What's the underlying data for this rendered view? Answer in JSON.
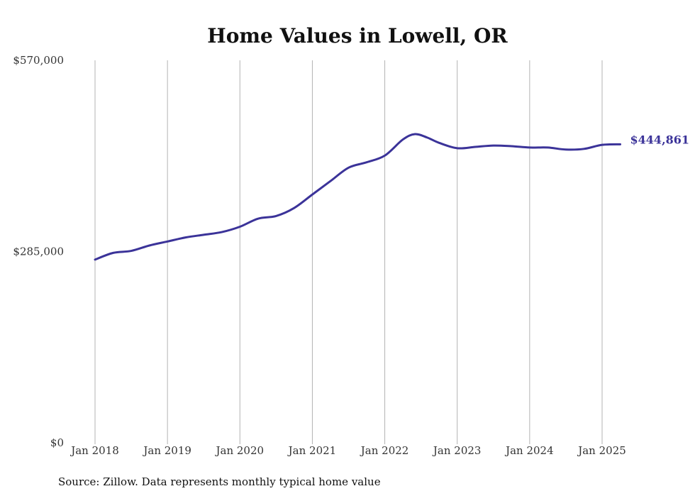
{
  "chart_data": {
    "type": "line",
    "title": "Home Values in Lowell, OR",
    "xlabel": "",
    "ylabel": "",
    "ylim": [
      0,
      570000
    ],
    "y_ticks": [
      {
        "value": 0,
        "label": "$0"
      },
      {
        "value": 285000,
        "label": "$285,000"
      },
      {
        "value": 570000,
        "label": "$570,000"
      }
    ],
    "x_range": [
      "2018-01",
      "2025-04"
    ],
    "x_ticks": [
      {
        "date": "2018-01",
        "label": "Jan 2018"
      },
      {
        "date": "2019-01",
        "label": "Jan 2019"
      },
      {
        "date": "2020-01",
        "label": "Jan 2020"
      },
      {
        "date": "2021-01",
        "label": "Jan 2021"
      },
      {
        "date": "2022-01",
        "label": "Jan 2022"
      },
      {
        "date": "2023-01",
        "label": "Jan 2023"
      },
      {
        "date": "2024-01",
        "label": "Jan 2024"
      },
      {
        "date": "2025-01",
        "label": "Jan 2025"
      }
    ],
    "grid": {
      "vertical": true,
      "horizontal": false
    },
    "series": [
      {
        "color": "#3b3399",
        "points": [
          {
            "x": "2018-01",
            "y": 273000
          },
          {
            "x": "2018-04",
            "y": 283000
          },
          {
            "x": "2018-07",
            "y": 286000
          },
          {
            "x": "2018-10",
            "y": 294000
          },
          {
            "x": "2019-01",
            "y": 300000
          },
          {
            "x": "2019-04",
            "y": 306000
          },
          {
            "x": "2019-07",
            "y": 310000
          },
          {
            "x": "2019-10",
            "y": 314000
          },
          {
            "x": "2020-01",
            "y": 322000
          },
          {
            "x": "2020-04",
            "y": 334000
          },
          {
            "x": "2020-07",
            "y": 338000
          },
          {
            "x": "2020-10",
            "y": 350000
          },
          {
            "x": "2021-01",
            "y": 370000
          },
          {
            "x": "2021-04",
            "y": 390000
          },
          {
            "x": "2021-07",
            "y": 410000
          },
          {
            "x": "2021-10",
            "y": 418000
          },
          {
            "x": "2022-01",
            "y": 428000
          },
          {
            "x": "2022-04",
            "y": 452000
          },
          {
            "x": "2022-06",
            "y": 460000
          },
          {
            "x": "2022-08",
            "y": 455000
          },
          {
            "x": "2022-10",
            "y": 447000
          },
          {
            "x": "2023-01",
            "y": 439000
          },
          {
            "x": "2023-04",
            "y": 441000
          },
          {
            "x": "2023-07",
            "y": 443000
          },
          {
            "x": "2023-10",
            "y": 442000
          },
          {
            "x": "2024-01",
            "y": 440000
          },
          {
            "x": "2024-04",
            "y": 440000
          },
          {
            "x": "2024-07",
            "y": 437000
          },
          {
            "x": "2024-10",
            "y": 438000
          },
          {
            "x": "2025-01",
            "y": 444000
          },
          {
            "x": "2025-04",
            "y": 444861
          }
        ]
      }
    ],
    "end_label": "$444,861",
    "source": "Source: Zillow. Data represents monthly typical home value"
  }
}
